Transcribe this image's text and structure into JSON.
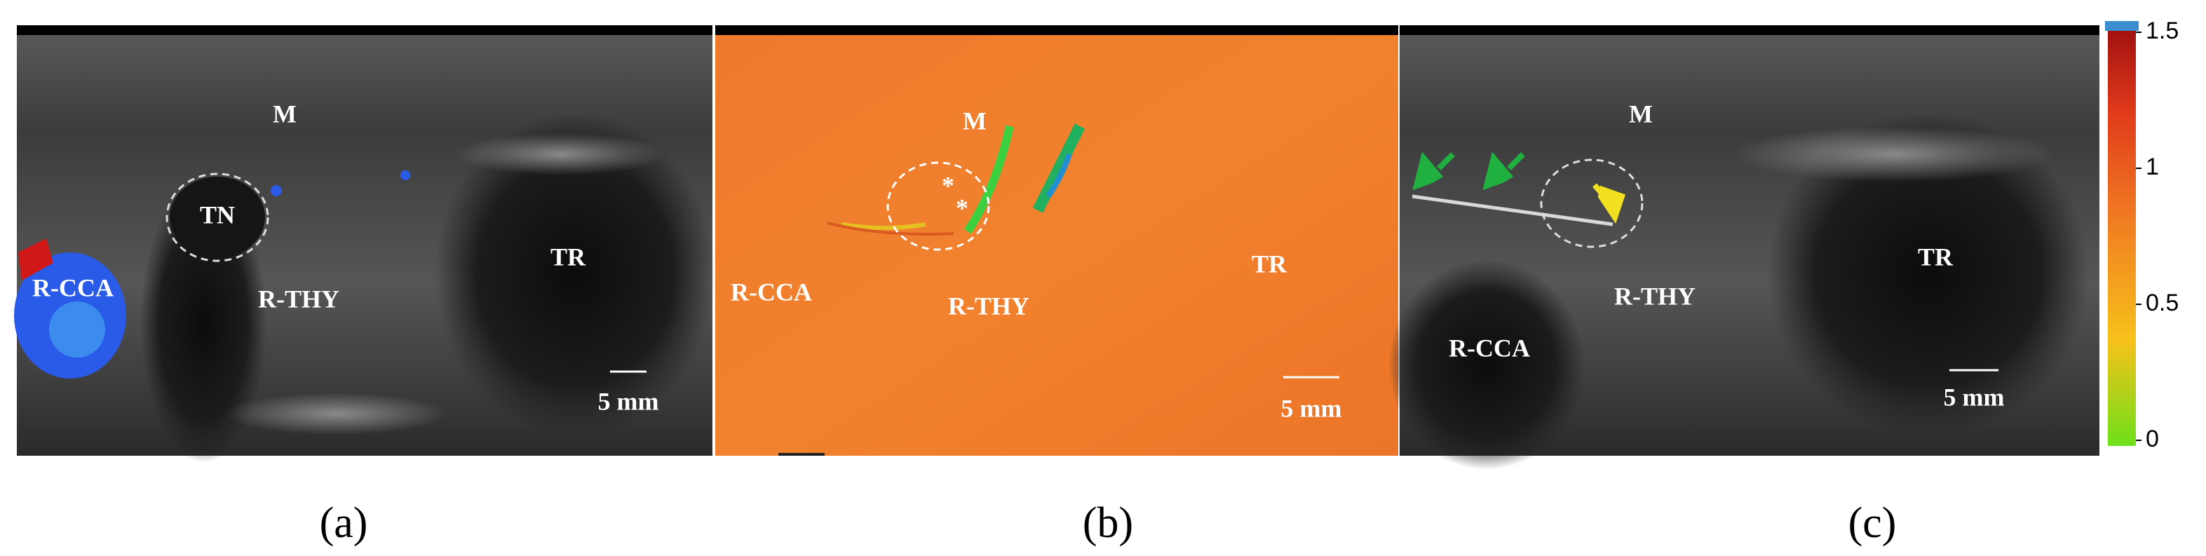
{
  "panels": [
    {
      "label": "(a)",
      "annotations": [
        "M",
        "TN",
        "R-CCA",
        "R-THY",
        "TR"
      ],
      "scale_bar": "5 mm"
    },
    {
      "label": "(b)",
      "annotations": [
        "M",
        "*",
        "*",
        "R-CCA",
        "R-THY",
        "TR"
      ],
      "scale_bar": "5 mm"
    },
    {
      "label": "(c)",
      "annotations": [
        "M",
        "R-CCA",
        "R-THY",
        "TR"
      ],
      "scale_bar": "5 mm"
    }
  ],
  "colorbar": {
    "ticks": [
      1.5,
      1,
      0.5,
      0
    ]
  }
}
